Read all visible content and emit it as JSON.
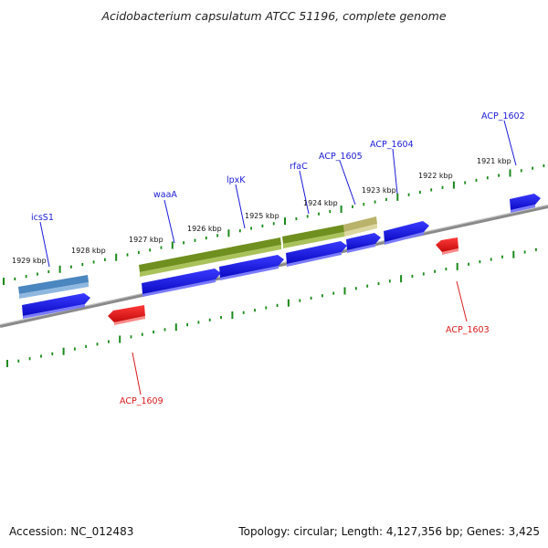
{
  "title": "Acidobacterium capsulatum ATCC 51196, complete genome",
  "accession": "Accession: NC_012483",
  "summary": "Topology: circular; Length: 4,127,356 bp; Genes: 3,425",
  "ruler_labels": [
    "1921 kbp",
    "1922 kbp",
    "1923 kbp",
    "1924 kbp",
    "1925 kbp",
    "1926 kbp",
    "1927 kbp",
    "1928 kbp",
    "1929 kbp"
  ],
  "gene_labels": {
    "acp1602": "ACP_1602",
    "acp1604": "ACP_1604",
    "acp1605": "ACP_1605",
    "rfac": "rfaC",
    "lpxk": "lpxK",
    "waaa": "waaA",
    "icss1": "icsS1",
    "acp1603": "ACP_1603",
    "acp1609": "ACP_1609"
  },
  "colors": {
    "forward_gene": "#1414e6",
    "reverse_gene": "#e61414",
    "feature_green": "#6f8f1f",
    "feature_khaki": "#b9b26a",
    "feature_steel": "#4a86bf",
    "ruler_ticks": "#1a8a1a",
    "backbone": "#8a8a8a"
  }
}
